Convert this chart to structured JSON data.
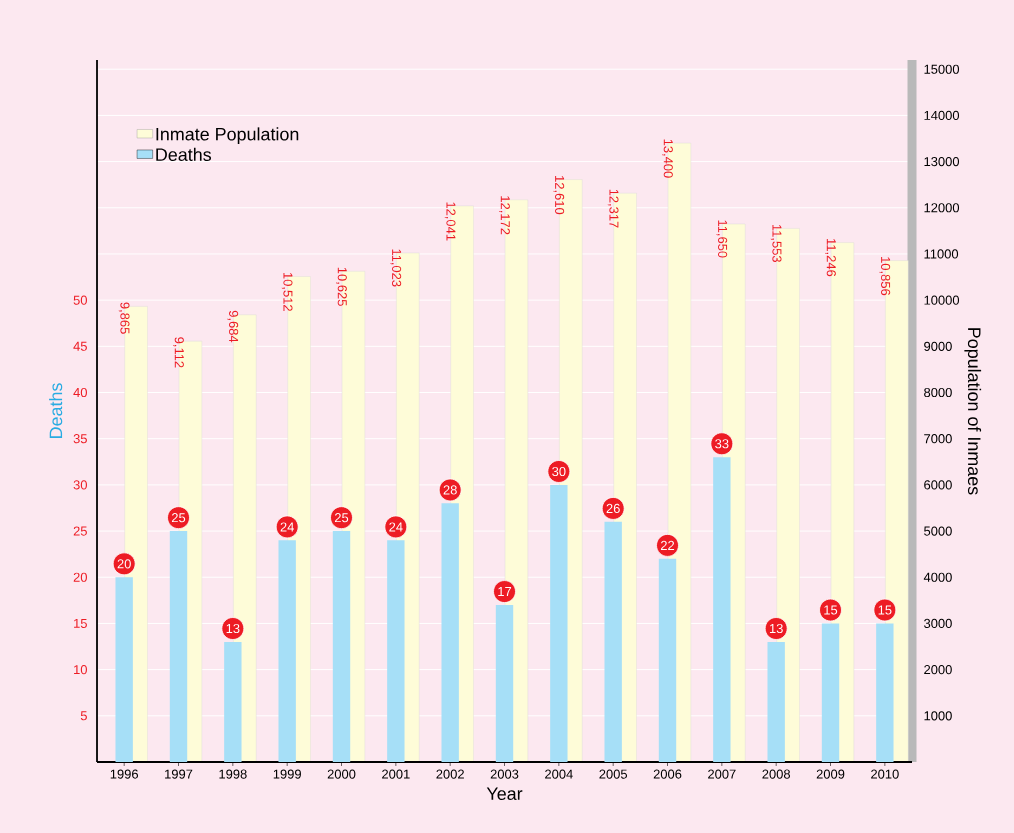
{
  "chart_data": {
    "type": "bar",
    "xlabel": "Year",
    "ylabel": "Deaths",
    "y2label": "Population of Inmaes",
    "categories": [
      "1996",
      "1997",
      "1998",
      "1999",
      "2000",
      "2001",
      "2002",
      "2003",
      "2004",
      "2005",
      "2006",
      "2007",
      "2008",
      "2009",
      "2010"
    ],
    "series": [
      {
        "name": "Inmate Population",
        "color": "#fefcd8",
        "axis": "y2",
        "values": [
          9865,
          9112,
          9684,
          10512,
          10625,
          11023,
          12041,
          12172,
          12610,
          12317,
          13400,
          11650,
          11553,
          11246,
          10856
        ],
        "value_labels": [
          "9,865",
          "9,112",
          "9,684",
          "10,512",
          "10,625",
          "11,023",
          "12,041",
          "12,172",
          "12,610",
          "12,317",
          "13,400",
          "11,650",
          "11,553",
          "11,246",
          "10,856"
        ]
      },
      {
        "name": "Deaths",
        "color": "#a6dff7",
        "values": [
          20,
          25,
          13,
          24,
          25,
          24,
          28,
          17,
          30,
          26,
          22,
          33,
          13,
          15,
          15
        ],
        "value_labels": [
          "20",
          "25",
          "13",
          "24",
          "25",
          "24",
          "28",
          "17",
          "30",
          "26",
          "22",
          "33",
          "13",
          "15",
          "15"
        ]
      }
    ],
    "ylim": [
      0,
      76
    ],
    "yticks": [
      5,
      10,
      15,
      20,
      25,
      30,
      35,
      40,
      45,
      50
    ],
    "y2lim": [
      0,
      15200
    ],
    "y2ticks": [
      1000,
      2000,
      3000,
      4000,
      5000,
      6000,
      7000,
      8000,
      9000,
      10000,
      11000,
      12000,
      13000,
      14000,
      15000
    ],
    "legend": "top left",
    "grid": "y"
  }
}
